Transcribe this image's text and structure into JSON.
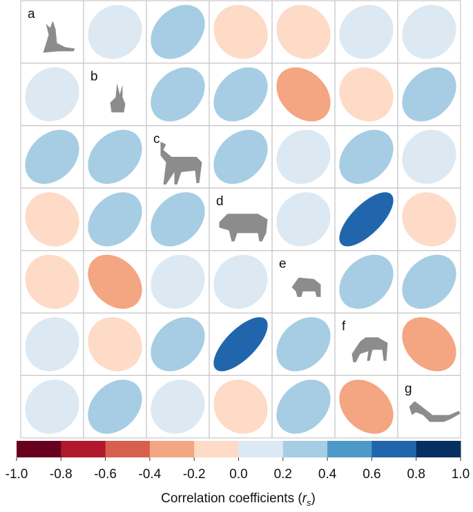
{
  "chart_data": {
    "type": "correlation-matrix",
    "variables": [
      "a",
      "b",
      "c",
      "d",
      "e",
      "f",
      "g"
    ],
    "matrix": [
      [
        null,
        0.1,
        0.3,
        -0.1,
        -0.1,
        0.1,
        0.1
      ],
      [
        0.1,
        null,
        0.3,
        0.3,
        -0.3,
        -0.1,
        0.3
      ],
      [
        0.3,
        0.3,
        null,
        0.3,
        0.1,
        0.3,
        0.1
      ],
      [
        -0.1,
        0.3,
        0.3,
        null,
        0.1,
        0.7,
        -0.1
      ],
      [
        -0.1,
        -0.3,
        0.1,
        0.1,
        null,
        0.3,
        0.3
      ],
      [
        0.1,
        -0.1,
        0.3,
        0.7,
        0.3,
        null,
        -0.3
      ],
      [
        0.1,
        0.3,
        0.1,
        -0.1,
        0.3,
        -0.3,
        null
      ]
    ],
    "clim": [
      -1,
      1
    ],
    "colors": [
      "#67001f",
      "#b2182b",
      "#d6604d",
      "#f4a582",
      "#fddbc7",
      "#dde9f2",
      "#a6cde3",
      "#4d9ac7",
      "#2166ac",
      "#053061"
    ],
    "ticks": [
      {
        "value": -1,
        "label": "-1.0"
      },
      {
        "value": -0.8,
        "label": "-0.8"
      },
      {
        "value": -0.6,
        "label": "-0.6"
      },
      {
        "value": -0.4,
        "label": "-0.4"
      },
      {
        "value": -0.2,
        "label": "-0.2"
      },
      {
        "value": 0,
        "label": "0.0"
      },
      {
        "value": 0.2,
        "label": "0.2"
      },
      {
        "value": 0.4,
        "label": "0.4"
      },
      {
        "value": 0.6,
        "label": "0.6"
      },
      {
        "value": 0.8,
        "label": "0.8"
      },
      {
        "value": 1,
        "label": "1.0"
      }
    ],
    "colorbar_label": [
      "Correlation coefficients (",
      "r",
      "s",
      ")"
    ]
  }
}
